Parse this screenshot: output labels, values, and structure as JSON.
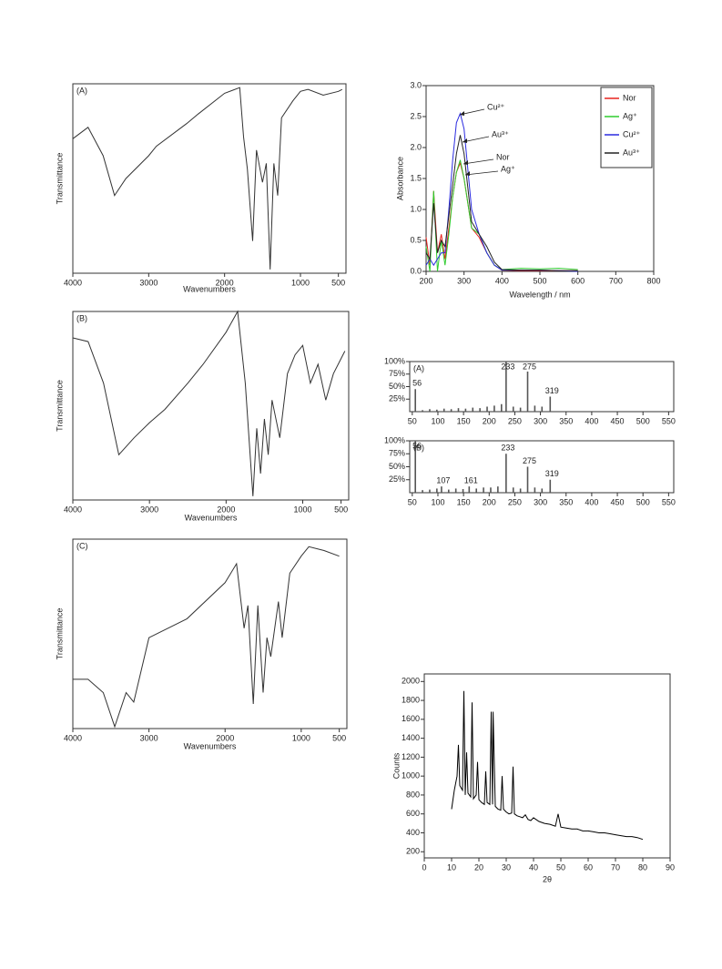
{
  "chart_data": [
    {
      "type": "line",
      "panel": "(A)",
      "xlabel": "Wavenumbers",
      "ylabel": "Transmittance",
      "xlim": [
        4000,
        400
      ],
      "xticks": [
        4000,
        3000,
        2000,
        1000,
        500
      ],
      "ylim": [
        0,
        100
      ],
      "x": [
        4000,
        3800,
        3600,
        3450,
        3300,
        3000,
        2900,
        2500,
        2350,
        2000,
        1800,
        1750,
        1700,
        1630,
        1580,
        1500,
        1450,
        1400,
        1350,
        1300,
        1250,
        1100,
        1000,
        900,
        700,
        500,
        450
      ],
      "series": [
        {
          "color": "#333333",
          "values": [
            71,
            77,
            62,
            41,
            50,
            62,
            67,
            79,
            84,
            95,
            98,
            72,
            55,
            17,
            65,
            48,
            58,
            2,
            58,
            41,
            82,
            91,
            96,
            97,
            94,
            96,
            97
          ]
        }
      ]
    },
    {
      "type": "line",
      "xlabel": "Wavelength / nm",
      "ylabel": "Absorbance",
      "xlim": [
        200,
        800
      ],
      "xticks": [
        200,
        300,
        400,
        500,
        600,
        700,
        800
      ],
      "ylim": [
        0,
        3
      ],
      "yticks": [
        {
          "value": 0,
          "label": "0.0"
        },
        0.5,
        {
          "value": 1,
          "label": "1.0"
        },
        1.5,
        {
          "value": 2,
          "label": "2.0"
        },
        2.5,
        {
          "value": 3,
          "label": "3.0"
        }
      ],
      "legend": "upper right",
      "annotations": [
        "Cu²⁺",
        "Au³⁺",
        "Nor",
        "Ag⁺"
      ],
      "x": [
        200,
        210,
        220,
        230,
        240,
        250,
        260,
        270,
        280,
        290,
        300,
        320,
        340,
        360,
        380,
        400,
        450,
        500,
        550,
        600
      ],
      "series": [
        {
          "name": "Nor",
          "color": "#e8231e",
          "values": [
            0.55,
            0.1,
            1.3,
            0.3,
            0.6,
            0.2,
            0.7,
            1.2,
            1.6,
            1.75,
            1.5,
            0.7,
            0.55,
            0.3,
            0.1,
            0.02,
            0.01,
            0.01,
            0.01,
            0.01
          ]
        },
        {
          "name": "Ag⁺",
          "color": "#2ecc2e",
          "values": [
            0.4,
            0.0,
            1.3,
            0.0,
            0.5,
            0.1,
            0.6,
            1.2,
            1.6,
            1.8,
            1.5,
            0.7,
            0.6,
            0.3,
            0.1,
            0.03,
            0.05,
            0.04,
            0.05,
            0.03
          ]
        },
        {
          "name": "Cu²⁺",
          "color": "#2b2be0",
          "values": [
            0.1,
            0.2,
            0.1,
            0.2,
            0.3,
            0.3,
            1.0,
            1.8,
            2.4,
            2.55,
            2.3,
            1.0,
            0.6,
            0.3,
            0.1,
            0.02,
            0.02,
            0.02,
            0.01,
            0.0
          ]
        },
        {
          "name": "Au³⁺",
          "color": "#222222",
          "values": [
            0.3,
            0.2,
            1.1,
            0.3,
            0.5,
            0.4,
            0.9,
            1.4,
            1.9,
            2.2,
            1.9,
            0.8,
            0.6,
            0.4,
            0.15,
            0.03,
            0.02,
            0.02,
            0.01,
            0.01
          ]
        }
      ]
    },
    {
      "type": "line",
      "panel": "(B)",
      "xlabel": "Wavenumbers",
      "ylabel": "Transmittance",
      "xlim": [
        4000,
        400
      ],
      "xticks": [
        4000,
        3000,
        2000,
        1000,
        500
      ],
      "ylim": [
        0,
        100
      ],
      "x": [
        4000,
        3800,
        3600,
        3400,
        3200,
        3000,
        2800,
        2500,
        2300,
        2000,
        1850,
        1750,
        1650,
        1600,
        1550,
        1500,
        1450,
        1400,
        1300,
        1200,
        1100,
        1000,
        900,
        800,
        700,
        600,
        450
      ],
      "series": [
        {
          "color": "#333333",
          "values": [
            86,
            84,
            62,
            24,
            33,
            41,
            48,
            62,
            72,
            89,
            100,
            62,
            2,
            38,
            14,
            43,
            24,
            53,
            33,
            67,
            77,
            82,
            62,
            72,
            53,
            67,
            79
          ]
        }
      ]
    },
    {
      "type": "bar",
      "panel": "(A)",
      "xlim": [
        45,
        560
      ],
      "xticks": [
        50,
        100,
        150,
        200,
        250,
        300,
        350,
        400,
        450,
        500,
        550
      ],
      "ylim": [
        0,
        100
      ],
      "yticks": [
        {
          "value": 25,
          "label": "25%"
        },
        {
          "value": 50,
          "label": "50%"
        },
        {
          "value": 75,
          "label": "75%"
        },
        {
          "value": 100,
          "label": "100%"
        }
      ],
      "x": [
        56,
        70,
        84,
        98,
        112,
        126,
        140,
        154,
        168,
        182,
        196,
        210,
        224,
        233,
        247,
        261,
        275,
        289,
        303,
        319
      ],
      "values": [
        45,
        3,
        5,
        4,
        6,
        5,
        7,
        6,
        8,
        7,
        10,
        12,
        15,
        100,
        10,
        8,
        80,
        12,
        10,
        30
      ],
      "peak_labels": [
        56,
        233,
        275,
        319
      ],
      "color": "#555555"
    },
    {
      "type": "bar",
      "panel": "(B)",
      "xlim": [
        45,
        560
      ],
      "xticks": [
        50,
        100,
        150,
        200,
        250,
        300,
        350,
        400,
        450,
        500,
        550
      ],
      "ylim": [
        0,
        100
      ],
      "yticks": [
        {
          "value": 25,
          "label": "25%"
        },
        {
          "value": 50,
          "label": "50%"
        },
        {
          "value": 75,
          "label": "75%"
        },
        {
          "value": 100,
          "label": "100%"
        }
      ],
      "x": [
        56,
        70,
        84,
        98,
        107,
        121,
        135,
        149,
        161,
        175,
        189,
        203,
        217,
        233,
        247,
        261,
        275,
        289,
        303,
        319
      ],
      "values": [
        100,
        5,
        6,
        8,
        12,
        6,
        8,
        7,
        12,
        8,
        10,
        10,
        12,
        75,
        10,
        8,
        50,
        10,
        8,
        25
      ],
      "peak_labels": [
        56,
        107,
        161,
        233,
        275,
        319
      ],
      "color": "#555555"
    },
    {
      "type": "line",
      "panel": "(C)",
      "xlabel": "Wavenumbers",
      "ylabel": "Transmittance",
      "xlim": [
        4000,
        400
      ],
      "xticks": [
        4000,
        3000,
        2000,
        1000,
        500
      ],
      "ylim": [
        0,
        100
      ],
      "x": [
        4000,
        3800,
        3600,
        3450,
        3300,
        3200,
        3000,
        2500,
        2000,
        1850,
        1750,
        1700,
        1630,
        1570,
        1500,
        1450,
        1400,
        1300,
        1250,
        1150,
        1000,
        900,
        700,
        500
      ],
      "series": [
        {
          "color": "#333333",
          "values": [
            26,
            26,
            19,
            1,
            19,
            14,
            48,
            58,
            77,
            87,
            53,
            65,
            13,
            65,
            19,
            48,
            38,
            67,
            48,
            82,
            91,
            96,
            94,
            91
          ]
        }
      ]
    },
    {
      "type": "line",
      "xlabel": "2θ",
      "ylabel": "Counts",
      "xlim": [
        0,
        90
      ],
      "xticks": [
        0,
        10,
        20,
        30,
        40,
        50,
        60,
        70,
        80,
        90
      ],
      "ylim": [
        135,
        2080
      ],
      "yticks": [
        200,
        400,
        600,
        800,
        1000,
        1200,
        1400,
        1600,
        1800,
        2000
      ],
      "x": [
        10,
        11,
        12,
        12.5,
        13,
        14,
        14.5,
        15,
        15.5,
        16,
        17,
        17.5,
        18,
        19,
        19.5,
        20,
        21,
        22,
        22.5,
        23,
        24,
        24.5,
        25,
        25.2,
        26,
        27,
        28,
        28.5,
        29,
        30,
        31,
        32,
        32.5,
        33,
        34,
        35,
        36,
        37,
        38,
        39,
        40,
        42,
        44,
        46,
        48,
        49,
        50,
        52,
        54,
        56,
        58,
        60,
        62,
        64,
        66,
        68,
        70,
        72,
        74,
        76,
        78,
        80
      ],
      "series": [
        {
          "color": "#000000",
          "values": [
            650,
            850,
            1000,
            1330,
            900,
            850,
            1900,
            800,
            1250,
            820,
            780,
            1780,
            760,
            800,
            1150,
            750,
            720,
            700,
            1050,
            720,
            700,
            1680,
            700,
            1680,
            680,
            650,
            640,
            1000,
            650,
            620,
            600,
            610,
            1100,
            600,
            580,
            570,
            560,
            590,
            540,
            530,
            560,
            520,
            500,
            490,
            470,
            600,
            460,
            450,
            440,
            440,
            420,
            420,
            410,
            400,
            400,
            390,
            380,
            370,
            360,
            360,
            350,
            330
          ]
        }
      ]
    }
  ]
}
